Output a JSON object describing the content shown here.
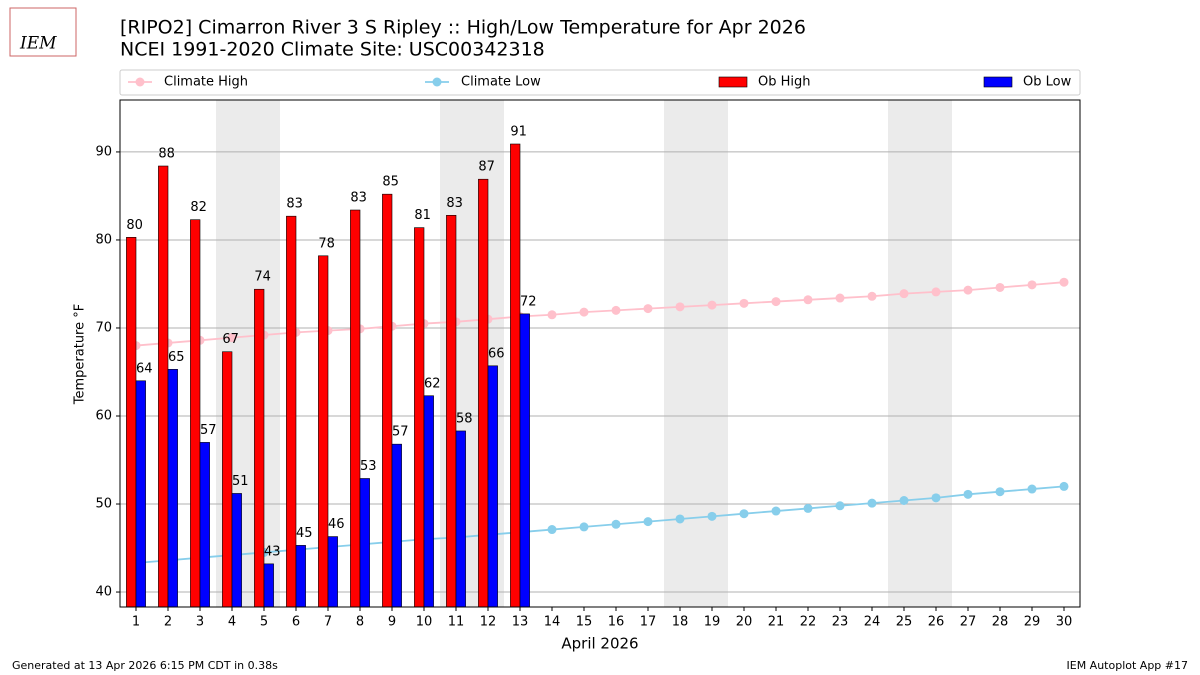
{
  "chart_data": {
    "type": "bar",
    "logo": "IEM",
    "title": "[RIPO2] Cimarron River 3 S Ripley :: High/Low Temperature for Apr 2026",
    "subtitle": "NCEI 1991-2020 Climate Site: USC00342318",
    "xlabel": "April 2026",
    "ylabel": "Temperature °F",
    "footer_left": "Generated at 13 Apr 2026 6:15 PM CDT in 0.38s",
    "footer_right": "IEM Autoplot App #17",
    "x": [
      1,
      2,
      3,
      4,
      5,
      6,
      7,
      8,
      9,
      10,
      11,
      12,
      13,
      14,
      15,
      16,
      17,
      18,
      19,
      20,
      21,
      22,
      23,
      24,
      25,
      26,
      27,
      28,
      29,
      30
    ],
    "xlim": [
      0.5,
      30.5
    ],
    "xticks": [
      1,
      2,
      3,
      4,
      5,
      6,
      7,
      8,
      9,
      10,
      11,
      12,
      13,
      14,
      15,
      16,
      17,
      18,
      19,
      20,
      21,
      22,
      23,
      24,
      25,
      26,
      27,
      28,
      29,
      30
    ],
    "ylim": [
      38.3,
      95.9
    ],
    "yticks": [
      40,
      50,
      60,
      70,
      80,
      90
    ],
    "grid": true,
    "shaded_days": [
      4,
      5,
      11,
      12,
      18,
      19,
      25,
      26
    ],
    "series": [
      {
        "name": "Climate High",
        "type": "line",
        "color": "#ffc0cb",
        "values": [
          68.0,
          68.3,
          68.6,
          68.9,
          69.2,
          69.5,
          69.7,
          69.9,
          70.2,
          70.5,
          70.7,
          71.0,
          71.3,
          71.5,
          71.8,
          72.0,
          72.2,
          72.4,
          72.6,
          72.8,
          73.0,
          73.2,
          73.4,
          73.6,
          73.9,
          74.1,
          74.3,
          74.6,
          74.9,
          75.2
        ]
      },
      {
        "name": "Climate Low",
        "type": "line",
        "color": "#87ceeb",
        "values": [
          43.3,
          43.6,
          43.9,
          44.2,
          44.5,
          44.8,
          45.1,
          45.4,
          45.7,
          46.0,
          46.2,
          46.5,
          46.8,
          47.1,
          47.4,
          47.7,
          48.0,
          48.3,
          48.6,
          48.9,
          49.2,
          49.5,
          49.8,
          50.1,
          50.4,
          50.7,
          51.1,
          51.4,
          51.7,
          52.0
        ]
      },
      {
        "name": "Ob High",
        "type": "bar",
        "color": "#ff0000",
        "values": [
          80.3,
          88.4,
          82.3,
          67.3,
          74.4,
          82.7,
          78.2,
          83.4,
          85.2,
          81.4,
          82.8,
          86.9,
          90.9,
          null,
          null,
          null,
          null,
          null,
          null,
          null,
          null,
          null,
          null,
          null,
          null,
          null,
          null,
          null,
          null,
          null
        ],
        "value_labels": [
          "80",
          "88",
          "82",
          "67",
          "74",
          "83",
          "78",
          "83",
          "85",
          "81",
          "83",
          "87",
          "91",
          null,
          null,
          null,
          null,
          null,
          null,
          null,
          null,
          null,
          null,
          null,
          null,
          null,
          null,
          null,
          null,
          null
        ]
      },
      {
        "name": "Ob Low",
        "type": "bar",
        "color": "#0000ff",
        "values": [
          64.0,
          65.3,
          57.0,
          51.2,
          43.2,
          45.3,
          46.3,
          52.9,
          56.8,
          62.3,
          58.3,
          65.7,
          71.6,
          null,
          null,
          null,
          null,
          null,
          null,
          null,
          null,
          null,
          null,
          null,
          null,
          null,
          null,
          null,
          null,
          null
        ],
        "value_labels": [
          "64",
          "65",
          "57",
          "51",
          "43",
          "45",
          "46",
          "53",
          "57",
          "62",
          "58",
          "66",
          "72",
          null,
          null,
          null,
          null,
          null,
          null,
          null,
          null,
          null,
          null,
          null,
          null,
          null,
          null,
          null,
          null,
          null
        ]
      }
    ]
  }
}
